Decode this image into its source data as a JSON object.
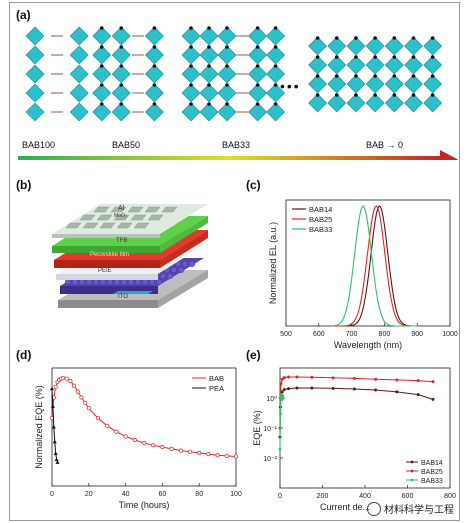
{
  "panels": {
    "a": "(a)",
    "b": "(b)",
    "c": "(c)",
    "d": "(d)",
    "e": "(e)"
  },
  "structures": [
    "BAB100",
    "BAB50",
    "BAB33",
    "BAB → 0"
  ],
  "ellipsis": "•••",
  "device_layers": {
    "top": "Al\nMoO₃",
    "tfb": "TFB",
    "emitter": "Perovskite film",
    "pedot": "PEIE",
    "ito": "ITO"
  },
  "colors": {
    "octahedron": "#2dbfca",
    "gradient_start": "#29b24a",
    "gradient_mid": "#e0e020",
    "gradient_end": "#c8241e",
    "bab14": "#5a1a12",
    "bab25": "#e0262b",
    "bab33": "#32c06a",
    "bab": "#e0262b",
    "pea": "#111111"
  },
  "chart_data": [
    {
      "id": "c",
      "type": "line",
      "xlabel": "Wavelength (nm)",
      "ylabel": "Normalized EL (a.u.)",
      "xlim": [
        500,
        1000
      ],
      "xticks": [
        500,
        600,
        700,
        800,
        900,
        1000
      ],
      "ylim": [
        0,
        1.05
      ],
      "legend": "top-left",
      "series": [
        {
          "name": "BAB14",
          "peak": 785,
          "fwhm": 60
        },
        {
          "name": "BAB25",
          "peak": 775,
          "fwhm": 62
        },
        {
          "name": "BAB33",
          "peak": 735,
          "fwhm": 60
        }
      ]
    },
    {
      "id": "d",
      "type": "line",
      "xlabel": "Time (hours)",
      "ylabel": "Normalized EQE (%)",
      "xlim": [
        0,
        100
      ],
      "xticks": [
        0,
        20,
        40,
        60,
        80,
        100
      ],
      "ylim": [
        0,
        200
      ],
      "yticks": [],
      "legend": "top-right",
      "series": [
        {
          "name": "BAB",
          "x": [
            0,
            1,
            2,
            3,
            4,
            5,
            6,
            8,
            10,
            12,
            14,
            16,
            18,
            20,
            25,
            30,
            35,
            40,
            45,
            50,
            55,
            60,
            65,
            70,
            75,
            80,
            85,
            90,
            95,
            100
          ],
          "y": [
            115,
            150,
            168,
            176,
            180,
            182,
            183,
            182,
            178,
            170,
            160,
            150,
            141,
            132,
            115,
            102,
            92,
            84,
            78,
            73,
            69,
            66,
            63,
            60,
            58,
            56,
            54,
            52,
            51,
            50
          ]
        },
        {
          "name": "PEA",
          "x": [
            0,
            0.5,
            1,
            1.5,
            2,
            2.5,
            3
          ],
          "y": [
            165,
            135,
            100,
            75,
            55,
            45,
            40
          ]
        }
      ]
    },
    {
      "id": "e",
      "type": "line",
      "xlabel": "Current de...",
      "ylabel": "EQE (%)",
      "xlim": [
        0,
        800
      ],
      "xticks": [
        0,
        200,
        400,
        600,
        800
      ],
      "yscale": "log",
      "ylim": [
        0.001,
        10
      ],
      "yticks": [
        0.01,
        0.1,
        1
      ],
      "ytick_labels": [
        "10⁻²",
        "10⁻¹",
        "10⁰"
      ],
      "legend": "bottom-right",
      "series": [
        {
          "name": "BAB14",
          "x": [
            0,
            2,
            5,
            10,
            20,
            40,
            80,
            150,
            250,
            350,
            450,
            550,
            650,
            720
          ],
          "y": [
            0.05,
            0.5,
            1.2,
            1.6,
            1.9,
            2.05,
            2.15,
            2.15,
            2.1,
            2.0,
            1.85,
            1.6,
            1.3,
            0.9
          ]
        },
        {
          "name": "BAB25",
          "x": [
            0,
            2,
            5,
            10,
            20,
            40,
            80,
            150,
            250,
            350,
            450,
            550,
            650,
            720
          ],
          "y": [
            0.1,
            1.0,
            3.0,
            4.2,
            4.8,
            5.0,
            5.0,
            4.9,
            4.7,
            4.5,
            4.2,
            4.0,
            3.8,
            3.5
          ]
        },
        {
          "name": "BAB33",
          "x": [
            0,
            2,
            4,
            6,
            8,
            10,
            12,
            15
          ],
          "y": [
            0.02,
            0.3,
            1.0,
            1.3,
            1.1,
            0.9,
            1.2,
            1.0
          ]
        }
      ]
    }
  ],
  "watermark": "材料科学与工程"
}
